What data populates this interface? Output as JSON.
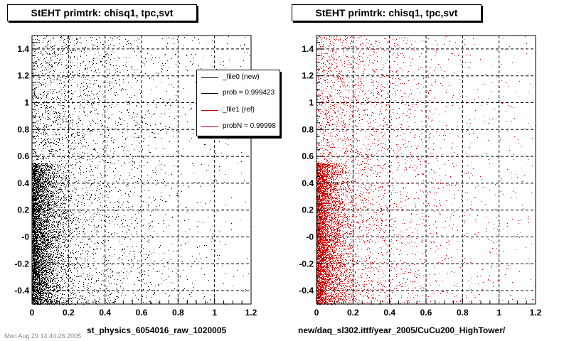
{
  "colors": {
    "file0": "#000000",
    "file1": "#d00000"
  },
  "footer": "Mon Aug 29 14:44:26 2005",
  "legend": {
    "entries": [
      {
        "label": "_file0 (new)",
        "color": "#000000"
      },
      {
        "label": "prob = 0.999423",
        "color": "#000000"
      },
      {
        "label": "_file1 (ref)",
        "color": "#d00000"
      },
      {
        "label": "probN = 0.99998",
        "color": "#d00000"
      }
    ]
  },
  "chart_data": [
    {
      "type": "scatter",
      "title": "StEHT primtrk: chisq1, tpc,svt",
      "xlabel": "st_physics_6054016_raw_1020005",
      "ylabel": "",
      "xlim": [
        0,
        1.2
      ],
      "ylim": [
        -0.5,
        1.5
      ],
      "xticks": [
        "0",
        "0.2",
        "0.4",
        "0.6",
        "0.8",
        "1",
        "1.2"
      ],
      "yticks": [
        "-0.4",
        "-0.2",
        "-0",
        "0.2",
        "0.4",
        "0.6",
        "0.8",
        "1",
        "1.2",
        "1.4"
      ],
      "grid": true,
      "color": "#000000",
      "density": {
        "description_points": 9000,
        "x_decay": 0.35,
        "dense_y_max": 0.5
      }
    },
    {
      "type": "scatter",
      "title": "StEHT primtrk: chisq1, tpc,svt",
      "xlabel": "new/daq_sl302.ittf/year_2005/CuCu200_HighTower/",
      "ylabel": "",
      "xlim": [
        0,
        1.2
      ],
      "ylim": [
        -0.5,
        1.5
      ],
      "xticks": [
        "0",
        "0.2",
        "0.4",
        "0.6",
        "0.8",
        "1",
        "1.2"
      ],
      "yticks": [
        "-0.4",
        "-0.2",
        "-0",
        "0.2",
        "0.4",
        "0.6",
        "0.8",
        "1",
        "1.2",
        "1.4"
      ],
      "grid": true,
      "color": "#d00000",
      "density": {
        "description_points": 9000,
        "x_decay": 0.35,
        "dense_y_max": 0.5
      }
    }
  ]
}
